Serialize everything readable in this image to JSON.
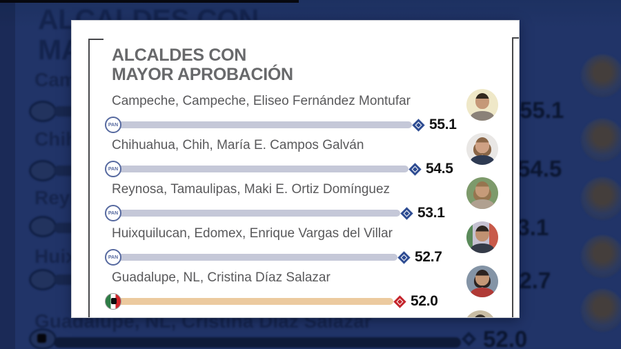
{
  "chart_data": {
    "type": "bar",
    "orientation": "horizontal",
    "title": "ALCALDES CON MAYOR APROBACIÓN",
    "categories": [
      "Campeche, Campeche, Eliseo Fernández Montufar",
      "Chihuahua, Chih, María E. Campos Galván",
      "Reynosa, Tamaulipas, Maki E. Ortiz Domínguez",
      "Huixquilucan, Edomex, Enrique Vargas del Villar",
      "Guadalupe, NL,  Cristina Díaz Salazar"
    ],
    "values": [
      55.1,
      54.5,
      53.1,
      52.7,
      52.0
    ],
    "value_suffix": "",
    "legend_position": "none",
    "grid": false,
    "marker": "diamond at bar end with numeric label"
  },
  "card": {
    "title_line1": "ALCALDES CON",
    "title_line2": "MAYOR APROBACIÓN",
    "rows": [
      {
        "label": "Campeche, Campeche, Eliseo Fernández Montufar",
        "value": "55.1",
        "value_num": 55.1,
        "party_abbr": "PAN",
        "party_icon": "pan-logo-icon",
        "bar_color": "#c5c8d8",
        "marker_color": "#2e4c92"
      },
      {
        "label": "Chihuahua, Chih, María E. Campos Galván",
        "value": "54.5",
        "value_num": 54.5,
        "party_abbr": "PAN",
        "party_icon": "pan-logo-icon",
        "bar_color": "#c5c8d8",
        "marker_color": "#2e4c92"
      },
      {
        "label": "Reynosa, Tamaulipas, Maki E. Ortiz Domínguez",
        "value": "53.1",
        "value_num": 53.1,
        "party_abbr": "PAN",
        "party_icon": "pan-logo-icon",
        "bar_color": "#c5c8d8",
        "marker_color": "#2e4c92"
      },
      {
        "label": "Huixquilucan, Edomex, Enrique Vargas del Villar",
        "value": "52.7",
        "value_num": 52.7,
        "party_abbr": "PAN",
        "party_icon": "pan-logo-icon",
        "bar_color": "#c5c8d8",
        "marker_color": "#2e4c92"
      },
      {
        "label": "Guadalupe, NL,  Cristina Díaz Salazar",
        "value": "52.0",
        "value_num": 52.0,
        "party_abbr": "",
        "party_icon": "pri-logo-icon",
        "bar_color": "#ecca9f",
        "marker_color": "#c4242b"
      }
    ]
  },
  "colors": {
    "page_background": "#213468",
    "background_ink": "#14244e",
    "card_background": "#ffffff",
    "title_gray": "#68696b",
    "label_gray": "#59595b",
    "value_black": "#121212"
  }
}
